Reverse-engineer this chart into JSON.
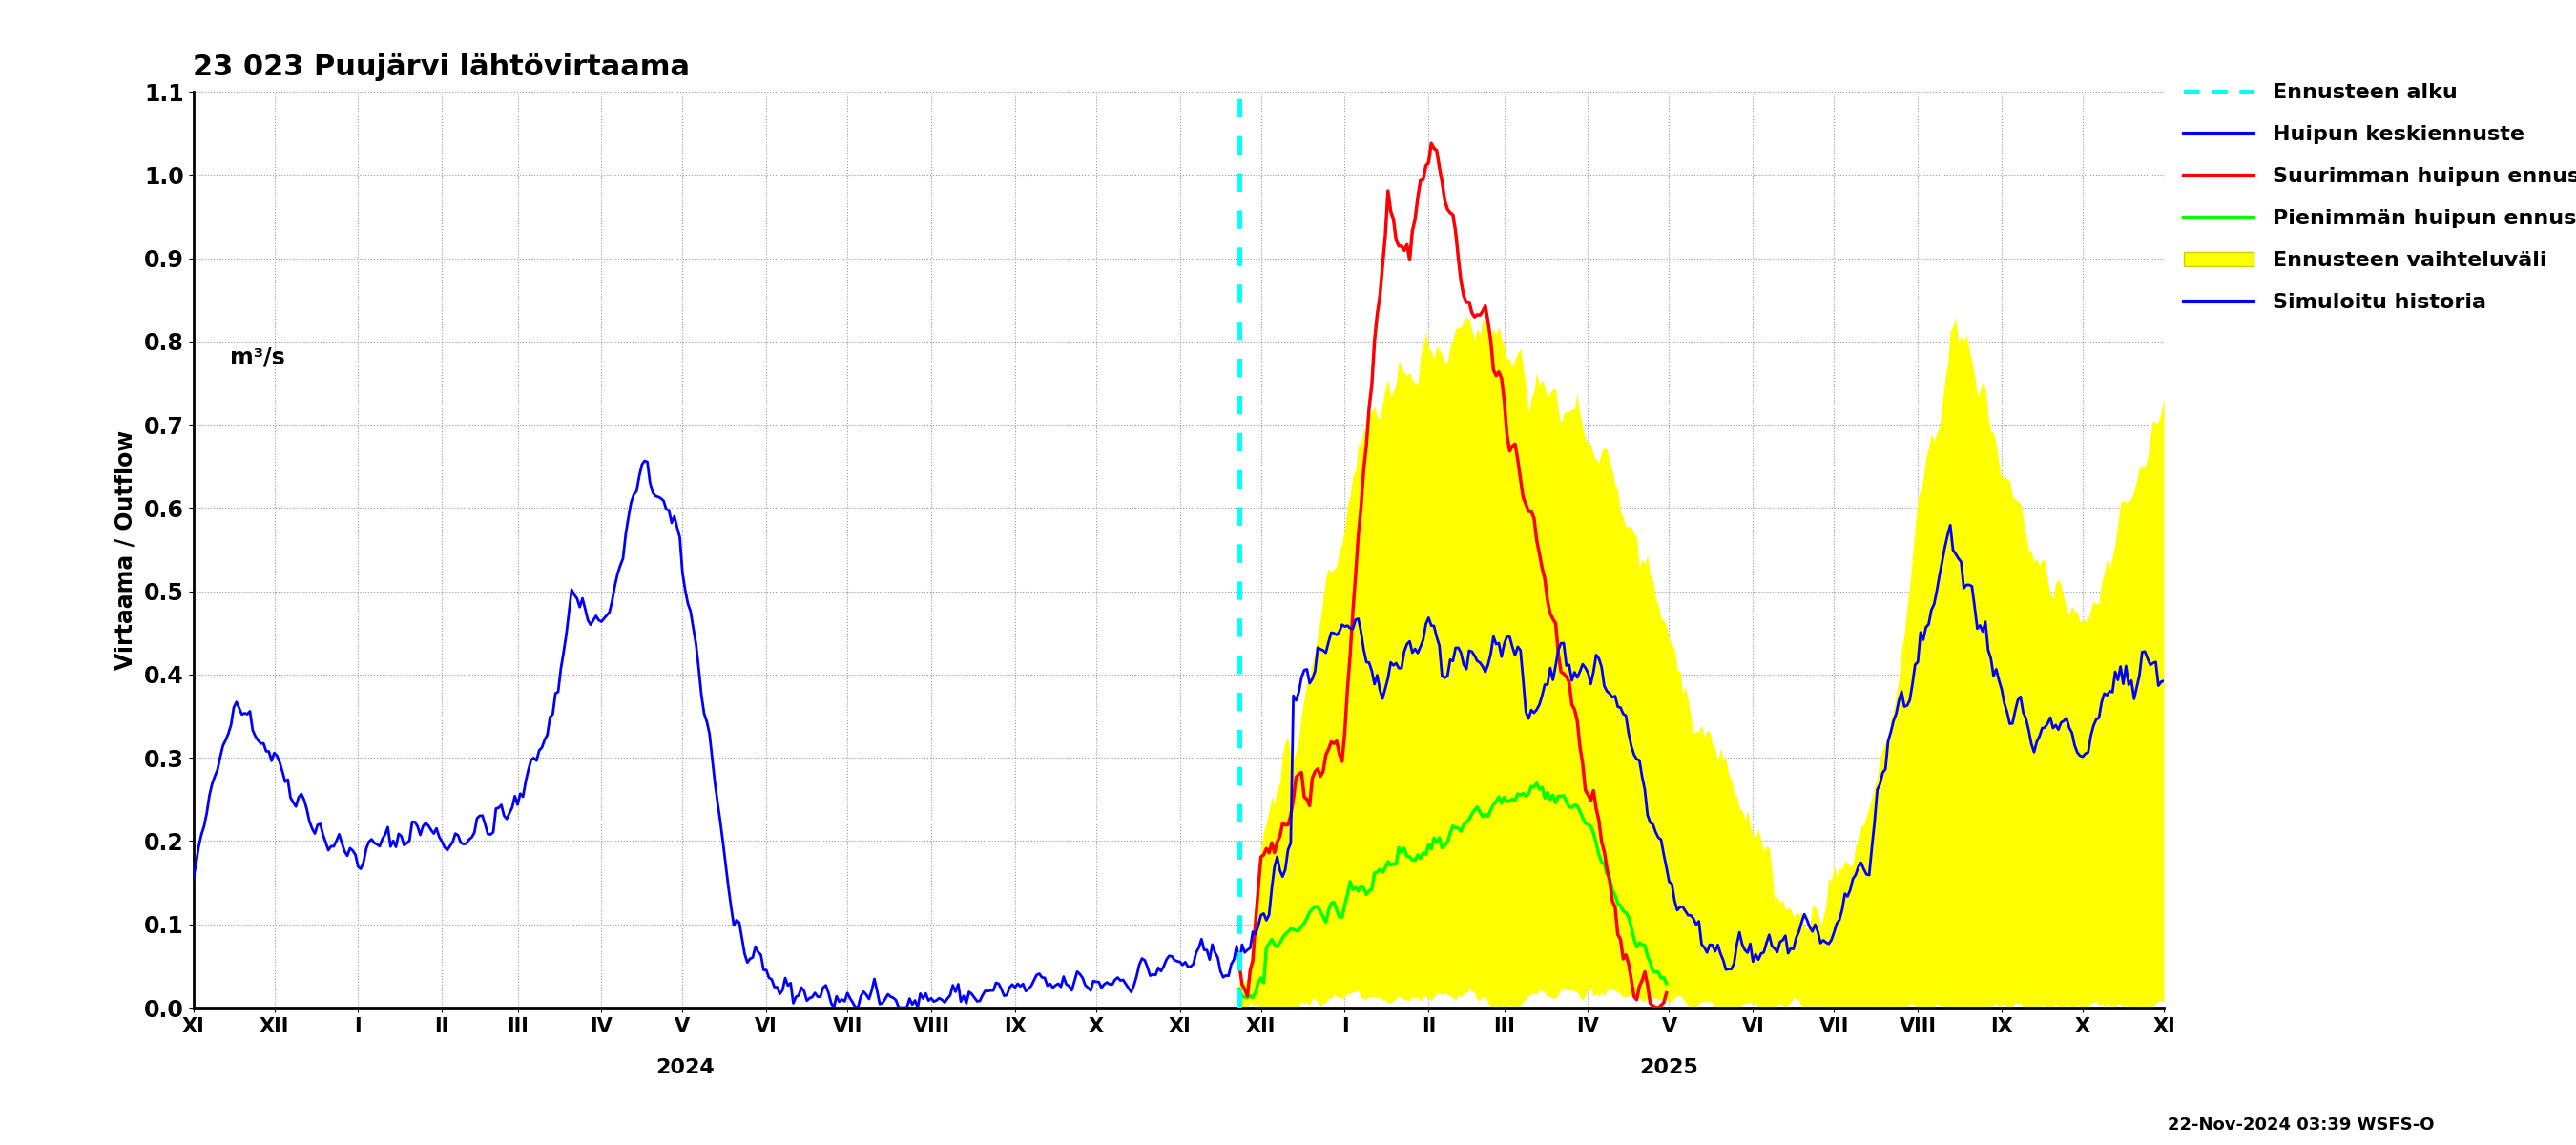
{
  "title": "23 023 Puujärvi lähtövirtaama",
  "ylabel": "Virtaama / Outflow",
  "ylabel2": "m³/s",
  "ylim": [
    0.0,
    1.1
  ],
  "yticks": [
    0.0,
    0.1,
    0.2,
    0.3,
    0.4,
    0.5,
    0.6,
    0.7,
    0.8,
    0.9,
    1.0,
    1.1
  ],
  "timestamp_text": "22-Nov-2024 03:39 WSFS-O",
  "legend_labels": [
    "Ennusteen alku",
    "Huipun keskiennuste",
    "Suurimman huipun ennuste",
    "Pienimmän huipun ennuste",
    "Ennusteen vaihteluväli",
    "Simuloitu historia"
  ],
  "background_color": "#ffffff",
  "grid_color": "#aaaaaa",
  "month_labels": [
    "XI",
    "XII",
    "I",
    "II",
    "III",
    "IV",
    "V",
    "VI",
    "VII",
    "VIII",
    "IX",
    "X",
    "XI",
    "XII",
    "I",
    "II",
    "III",
    "IV",
    "V",
    "VI",
    "VII",
    "VIII",
    "IX",
    "X",
    "XI"
  ],
  "year_labels": [
    "2024",
    "2025"
  ]
}
